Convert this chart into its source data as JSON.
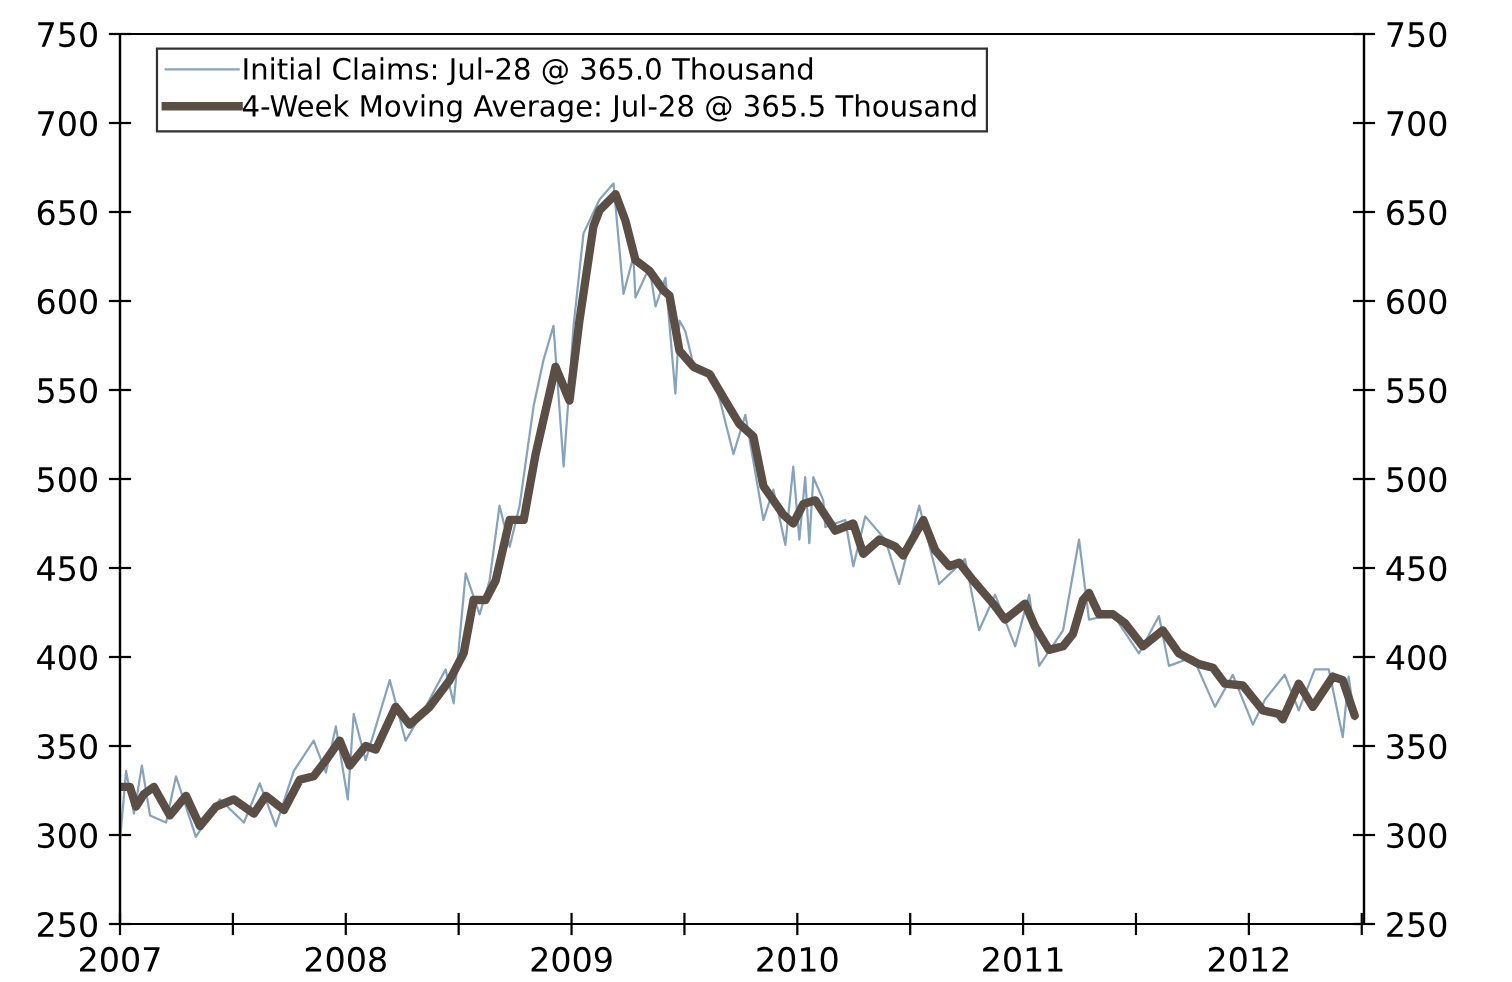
{
  "chart_data": {
    "type": "line",
    "xlim": [
      2007,
      2012.51
    ],
    "ylim": [
      250,
      750
    ],
    "y2lim": [
      250,
      750
    ],
    "xticks": [
      2007,
      {
        "value": 2007.5,
        "label": null
      },
      2008,
      {
        "value": 2008.5,
        "label": null
      },
      2009,
      {
        "value": 2009.5,
        "label": null
      },
      2010,
      {
        "value": 2010.5,
        "label": null
      },
      2011,
      {
        "value": 2011.5,
        "label": null
      },
      2012,
      {
        "value": 2012.5,
        "label": null
      }
    ],
    "yticks": [
      250,
      300,
      350,
      400,
      450,
      500,
      550,
      600,
      650,
      700,
      750
    ],
    "y2ticks": [
      250,
      300,
      350,
      400,
      450,
      500,
      550,
      600,
      650,
      700,
      750
    ],
    "grid": false,
    "legend": "top left",
    "series": [
      {
        "name": "Initial Claims: Jul-28 @ 365.0 Thousand",
        "color": "#86a3bd",
        "x": [
          2007.0,
          2007.027,
          2007.062,
          2007.097,
          2007.133,
          2007.204,
          2007.248,
          2007.336,
          2007.442,
          2007.549,
          2007.619,
          2007.69,
          2007.77,
          2007.858,
          2007.912,
          2007.956,
          2008.009,
          2008.035,
          2008.088,
          2008.195,
          2008.265,
          2008.354,
          2008.442,
          2008.478,
          2008.531,
          2008.593,
          2008.637,
          2008.681,
          2008.726,
          2008.77,
          2008.832,
          2008.876,
          2008.92,
          2008.965,
          2009.009,
          2009.053,
          2009.124,
          2009.186,
          2009.23,
          2009.274,
          2009.283,
          2009.345,
          2009.372,
          2009.416,
          2009.46,
          2009.478,
          2009.504,
          2009.54,
          2009.628,
          2009.717,
          2009.77,
          2009.85,
          2009.894,
          2009.947,
          2009.982,
          2010.009,
          2010.035,
          2010.053,
          2010.071,
          2010.115,
          2010.124,
          2010.212,
          2010.248,
          2010.301,
          2010.389,
          2010.451,
          2010.54,
          2010.628,
          2010.743,
          2010.805,
          2010.876,
          2010.965,
          2011.027,
          2011.071,
          2011.177,
          2011.248,
          2011.292,
          2011.398,
          2011.513,
          2011.602,
          2011.646,
          2011.752,
          2011.85,
          2011.929,
          2012.018,
          2012.071,
          2012.159,
          2012.221,
          2012.292,
          2012.354,
          2012.416,
          2012.442,
          2012.469
        ],
        "values": [
          297,
          336,
          312,
          339,
          311,
          307,
          333,
          299,
          320,
          307,
          329,
          305,
          336,
          353,
          335,
          361,
          320,
          368,
          342,
          387,
          353,
          372,
          393,
          374,
          447,
          424,
          443,
          485,
          462,
          485,
          541,
          567,
          586,
          507,
          586,
          638,
          657,
          666,
          604,
          625,
          602,
          619,
          597,
          613,
          548,
          589,
          583,
          564,
          559,
          514,
          536,
          477,
          494,
          463,
          507,
          466,
          501,
          464,
          501,
          488,
          473,
          477,
          451,
          479,
          466,
          441,
          485,
          441,
          455,
          415,
          435,
          406,
          435,
          395,
          415,
          466,
          421,
          424,
          402,
          423,
          395,
          400,
          372,
          390,
          362,
          376,
          390,
          370,
          393,
          393,
          355,
          389,
          365
        ]
      },
      {
        "name": "4-Week Moving Average: Jul-28 @ 365.5 Thousand",
        "color": "#5b4f45",
        "x": [
          2007.0,
          2007.044,
          2007.071,
          2007.106,
          2007.15,
          2007.221,
          2007.292,
          2007.354,
          2007.425,
          2007.504,
          2007.593,
          2007.646,
          2007.726,
          2007.796,
          2007.858,
          2007.912,
          2007.973,
          2008.018,
          2008.088,
          2008.133,
          2008.221,
          2008.283,
          2008.372,
          2008.46,
          2008.522,
          2008.566,
          2008.619,
          2008.664,
          2008.726,
          2008.788,
          2008.841,
          2008.929,
          2008.991,
          2009.035,
          2009.097,
          2009.124,
          2009.195,
          2009.239,
          2009.283,
          2009.345,
          2009.407,
          2009.434,
          2009.478,
          2009.54,
          2009.611,
          2009.681,
          2009.743,
          2009.805,
          2009.85,
          2009.938,
          2009.982,
          2010.027,
          2010.08,
          2010.168,
          2010.248,
          2010.292,
          2010.363,
          2010.434,
          2010.469,
          2010.558,
          2010.611,
          2010.673,
          2010.717,
          2010.779,
          2010.867,
          2010.92,
          2011.009,
          2011.053,
          2011.115,
          2011.177,
          2011.221,
          2011.265,
          2011.292,
          2011.336,
          2011.398,
          2011.451,
          2011.531,
          2011.619,
          2011.69,
          2011.779,
          2011.841,
          2011.894,
          2011.973,
          2012.062,
          2012.133,
          2012.15,
          2012.221,
          2012.283,
          2012.372,
          2012.416,
          2012.469
        ],
        "values": [
          327,
          327,
          316,
          323,
          327,
          311,
          322,
          305,
          316,
          320,
          312,
          322,
          314,
          331,
          333,
          342,
          353,
          339,
          350,
          348,
          372,
          362,
          372,
          387,
          402,
          432,
          432,
          443,
          477,
          477,
          514,
          563,
          544,
          589,
          642,
          651,
          660,
          645,
          623,
          617,
          606,
          603,
          572,
          563,
          559,
          544,
          531,
          524,
          496,
          480,
          475,
          486,
          488,
          471,
          475,
          458,
          466,
          462,
          457,
          477,
          460,
          451,
          453,
          443,
          430,
          421,
          430,
          417,
          404,
          406,
          413,
          432,
          436,
          424,
          424,
          419,
          406,
          415,
          402,
          396,
          394,
          385,
          384,
          370,
          368,
          365,
          385,
          372,
          389,
          387,
          367
        ]
      }
    ]
  }
}
